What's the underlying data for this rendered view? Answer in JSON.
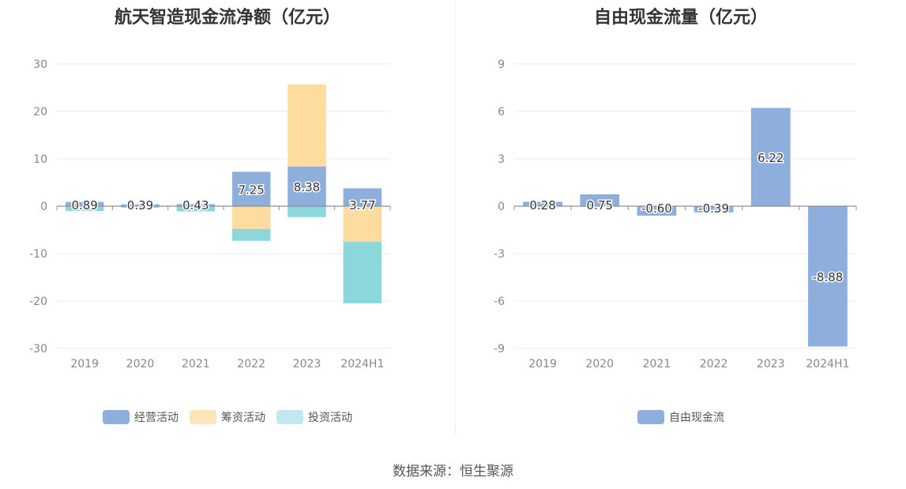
{
  "chart_data": [
    {
      "type": "bar",
      "stacked": true,
      "title": "航天智造现金流净额（亿元）",
      "categories": [
        "2019",
        "2020",
        "2021",
        "2022",
        "2023",
        "2024H1"
      ],
      "ylim": [
        -30,
        30
      ],
      "yticks": [
        30,
        20,
        10,
        0,
        -10,
        -20,
        -30
      ],
      "series": [
        {
          "name": "经营活动",
          "color": "#8eaedc",
          "values": [
            0.89,
            0.39,
            0.43,
            7.25,
            8.38,
            3.77
          ]
        },
        {
          "name": "筹资活动",
          "color": "#fedb9f",
          "values": [
            0,
            0,
            0,
            -4.8,
            17.3,
            -7.5
          ]
        },
        {
          "name": "投资活动",
          "color": "#8cd7dc",
          "values": [
            -1.0,
            -0.3,
            -1.1,
            -2.5,
            -2.3,
            -13.0
          ]
        }
      ],
      "data_labels": [
        "0.89",
        "0.39",
        "0.43",
        "7.25",
        "8.38",
        "3.77"
      ],
      "legend_colors": [
        "#8eaedc",
        "#fee4bb",
        "#c0e8ed"
      ],
      "legend": "bottom-center",
      "grid": true
    },
    {
      "type": "bar",
      "title": "自由现金流量（亿元）",
      "categories": [
        "2019",
        "2020",
        "2021",
        "2022",
        "2023",
        "2024H1"
      ],
      "ylim": [
        -9,
        9
      ],
      "yticks": [
        9,
        6,
        3,
        0,
        -3,
        -6,
        -9
      ],
      "series": [
        {
          "name": "自由现金流",
          "color": "#8eaedc",
          "values": [
            0.28,
            0.75,
            -0.6,
            -0.39,
            6.22,
            -8.88
          ]
        }
      ],
      "data_labels": [
        "0.28",
        "0.75",
        "-0.60",
        "-0.39",
        "6.22",
        "-8.88"
      ],
      "legend_colors": [
        "#8eaedc"
      ],
      "legend": "bottom-center",
      "grid": true
    }
  ],
  "footer": {
    "source": "数据来源：恒生聚源"
  }
}
